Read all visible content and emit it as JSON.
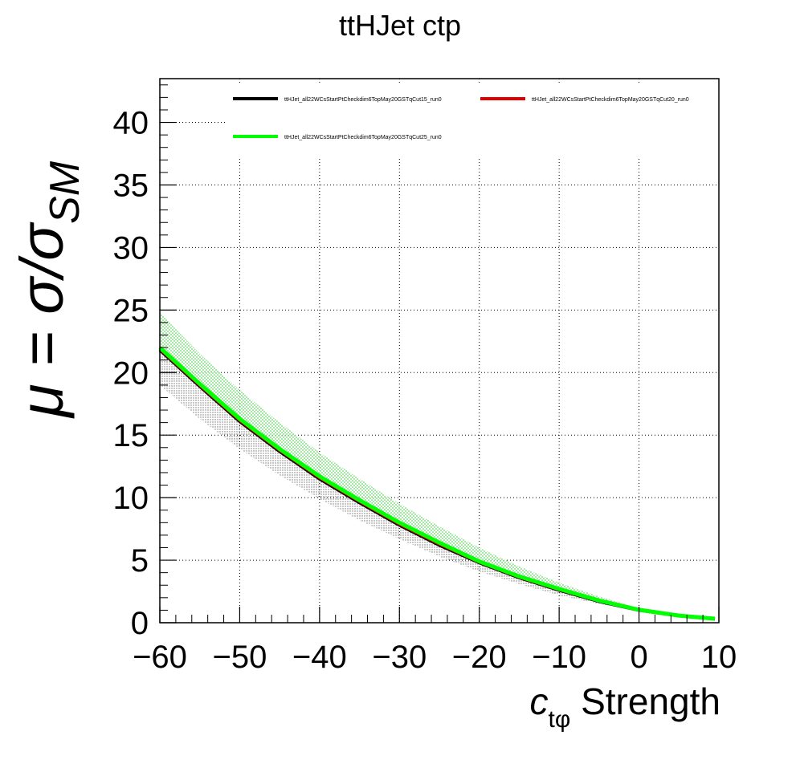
{
  "chart_data": {
    "type": "line",
    "title": "ttHJet ctp",
    "xlabel": "Strength",
    "xlabel_symbol": "c",
    "xlabel_subscript": "tφ",
    "ylabel": "μ = σ/σ",
    "ylabel_subscript": "SM",
    "xlim": [
      -60,
      10
    ],
    "ylim": [
      0,
      43.5
    ],
    "x_ticks": [
      -60,
      -50,
      -40,
      -30,
      -20,
      -10,
      0,
      10
    ],
    "x_tick_labels": [
      "−60",
      "−50",
      "−40",
      "−30",
      "−20",
      "−10",
      "0",
      "10"
    ],
    "y_ticks": [
      0,
      5,
      10,
      15,
      20,
      25,
      30,
      35,
      40
    ],
    "y_tick_labels": [
      "0",
      "5",
      "10",
      "15",
      "20",
      "25",
      "30",
      "35",
      "40"
    ],
    "grid": true,
    "legend_position": "top",
    "x": [
      -60,
      -55,
      -50,
      -45,
      -40,
      -35,
      -30,
      -25,
      -20,
      -15,
      -10,
      -5,
      0,
      5,
      9.5
    ],
    "series": [
      {
        "name": "ttHJet_all22WCsStartPtCheckdim6TopMay20GSTqCut15_run0",
        "color": "#000000",
        "values": [
          21.8,
          18.9,
          16.1,
          13.7,
          11.5,
          9.6,
          7.8,
          6.2,
          4.8,
          3.6,
          2.6,
          1.7,
          1.0,
          0.55,
          0.3
        ],
        "band_low": [
          19.0,
          16.3,
          13.9,
          11.8,
          9.9,
          8.2,
          6.7,
          5.3,
          4.1,
          3.1,
          2.2,
          1.5,
          0.95,
          0.52,
          0.28
        ],
        "band_high": [
          21.9,
          19.0,
          16.2,
          13.8,
          11.6,
          9.7,
          7.9,
          6.3,
          4.9,
          3.7,
          2.7,
          1.8,
          1.05,
          0.58,
          0.32
        ]
      },
      {
        "name": "ttHJet_all22WCsStartPtCheckdim6TopMay20GSTqCut20_run0",
        "color": "#e00000",
        "values": [
          21.9,
          19.0,
          16.2,
          13.8,
          11.6,
          9.7,
          7.9,
          6.3,
          4.85,
          3.65,
          2.65,
          1.75,
          1.02,
          0.56,
          0.31
        ]
      },
      {
        "name": "ttHJet_all22WCsStartPtCheckdim6TopMay20GSTqCut25_run0",
        "color": "#00ff00",
        "values": [
          22.0,
          19.1,
          16.3,
          13.9,
          11.7,
          9.8,
          8.0,
          6.4,
          4.9,
          3.7,
          2.7,
          1.78,
          1.03,
          0.57,
          0.32
        ],
        "band_low": [
          21.8,
          18.9,
          16.1,
          13.7,
          11.5,
          9.6,
          7.8,
          6.2,
          4.8,
          3.6,
          2.6,
          1.7,
          0.98,
          0.54,
          0.3
        ],
        "band_high": [
          24.8,
          21.5,
          18.6,
          16.0,
          13.6,
          11.5,
          9.5,
          7.7,
          6.0,
          4.5,
          3.2,
          2.1,
          1.15,
          0.62,
          0.34
        ]
      }
    ]
  }
}
